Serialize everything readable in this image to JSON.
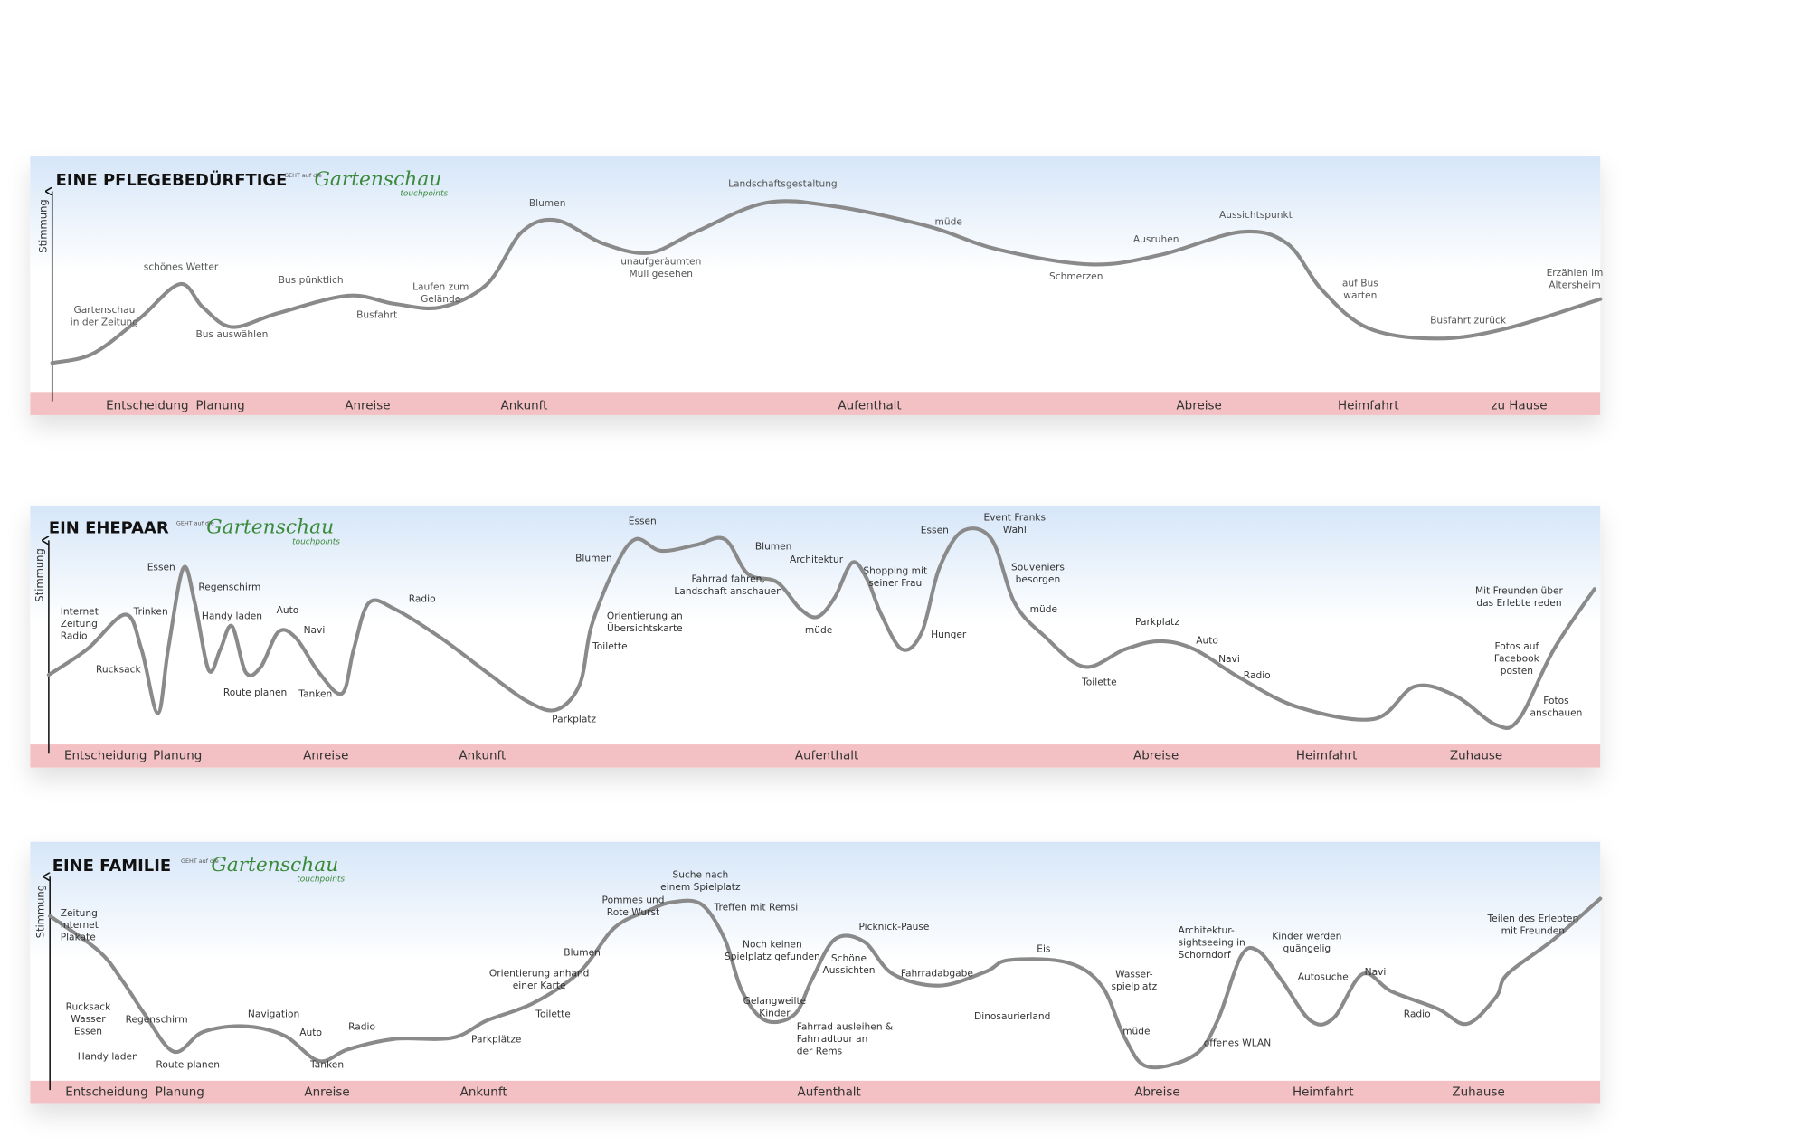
{
  "panels": [
    {
      "title": "EINE PFLEGEBEDÜRFTIGE",
      "logo": {
        "small": "GEHT auf die",
        "script": "Gartenschau",
        "sub": "touchpoints"
      },
      "axis_label": "Stimmung",
      "touchpoints": [
        [
          "Gartenschau",
          "in der Zeitung"
        ],
        [
          "schönes Wetter"
        ],
        [
          "Bus auswählen"
        ],
        [
          "Bus pünktlich"
        ],
        [
          "Busfahrt"
        ],
        [
          "Laufen zum",
          "Gelände"
        ],
        [
          "Blumen"
        ],
        [
          "unaufgeräumten",
          "Müll gesehen"
        ],
        [
          "Landschaftsgestaltung"
        ],
        [
          "müde"
        ],
        [
          "Schmerzen"
        ],
        [
          "Ausruhen"
        ],
        [
          "Aussichtspunkt"
        ],
        [
          "auf Bus",
          "warten"
        ],
        [
          "Busfahrt zurück"
        ],
        [
          "Erzählen im",
          "Altersheim"
        ]
      ],
      "phases": [
        "Entscheidung",
        "Planung",
        "Anreise",
        "Ankunft",
        "Aufenthalt",
        "Abreise",
        "Heimfahrt",
        "zu Hause"
      ]
    },
    {
      "title": "EIN EHEPAAR",
      "logo": {
        "small": "GEHT auf die",
        "script": "Gartenschau",
        "sub": "touchpoints"
      },
      "axis_label": "Stimmung",
      "touchpoints": [
        [
          "Internet",
          "Zeitung",
          "Radio"
        ],
        [
          "Rucksack"
        ],
        [
          "Trinken"
        ],
        [
          "Essen"
        ],
        [
          "Regenschirm"
        ],
        [
          "Handy laden"
        ],
        [
          "Auto"
        ],
        [
          "Navi"
        ],
        [
          "Route planen"
        ],
        [
          "Tanken"
        ],
        [
          "Radio"
        ],
        [
          "Parkplatz"
        ],
        [
          "Blumen"
        ],
        [
          "Essen"
        ],
        [
          "Orientierung an",
          "Übersichtskarte"
        ],
        [
          "Toilette"
        ],
        [
          "Fahrrad fahren,",
          "Landschaft anschauen"
        ],
        [
          "Blumen"
        ],
        [
          "Architektur"
        ],
        [
          "müde"
        ],
        [
          "Shopping mit",
          "seiner Frau"
        ],
        [
          "Essen"
        ],
        [
          "Event Franks",
          "Wahl"
        ],
        [
          "Hunger"
        ],
        [
          "Souveniers",
          "besorgen"
        ],
        [
          "müde"
        ],
        [
          "Parkplatz"
        ],
        [
          "Toilette"
        ],
        [
          "Auto"
        ],
        [
          "Navi"
        ],
        [
          "Radio"
        ],
        [
          "Mit Freunden über",
          "das Erlebte  reden"
        ],
        [
          "Fotos auf",
          "Facebook",
          "posten"
        ],
        [
          "Fotos",
          "anschauen"
        ]
      ],
      "phases": [
        "Entscheidung",
        "Planung",
        "Anreise",
        "Ankunft",
        "Aufenthalt",
        "Abreise",
        "Heimfahrt",
        "Zuhause"
      ]
    },
    {
      "title": "EINE FAMILIE",
      "logo": {
        "small": "GEHT auf die",
        "script": "Gartenschau",
        "sub": "touchpoints"
      },
      "axis_label": "Stimmung",
      "touchpoints": [
        [
          "Zeitung",
          "Internet",
          "Plakate"
        ],
        [
          "Rucksack",
          "Wasser",
          "Essen"
        ],
        [
          "Regenschirm"
        ],
        [
          "Handy laden"
        ],
        [
          "Route planen"
        ],
        [
          "Navigation"
        ],
        [
          "Auto"
        ],
        [
          "Tanken"
        ],
        [
          "Radio"
        ],
        [
          "Parkplätze"
        ],
        [
          "Toilette"
        ],
        [
          "Orientierung anhand",
          "einer Karte"
        ],
        [
          "Blumen"
        ],
        [
          "Pommes und",
          "Rote Wurst"
        ],
        [
          "Suche nach",
          "einem Spielplatz"
        ],
        [
          "Treffen mit Remsi"
        ],
        [
          "Noch keinen",
          "Spielplatz gefunden"
        ],
        [
          "Schöne",
          "Aussichten"
        ],
        [
          "Gelangweilte",
          "Kinder"
        ],
        [
          "Fahrrad ausleihen &",
          "Fahrradtour an",
          "der Rems"
        ],
        [
          "Picknick-Pause"
        ],
        [
          "Fahrradabgabe"
        ],
        [
          "Dinosaurierland"
        ],
        [
          "Eis"
        ],
        [
          "Wasser-",
          "spielplatz"
        ],
        [
          "müde"
        ],
        [
          "Architektur-",
          "sightseeing in",
          "Schorndorf"
        ],
        [
          "offenes WLAN"
        ],
        [
          "Kinder werden",
          "quängelig"
        ],
        [
          "Autosuche"
        ],
        [
          "Navi"
        ],
        [
          "Radio"
        ],
        [
          "Teilen des Erlebten",
          "mit Freunden"
        ]
      ],
      "phases": [
        "Entscheidung",
        "Planung",
        "Anreise",
        "Ankunft",
        "Aufenthalt",
        "Abreise",
        "Heimfahrt",
        "Zuhause"
      ]
    }
  ]
}
